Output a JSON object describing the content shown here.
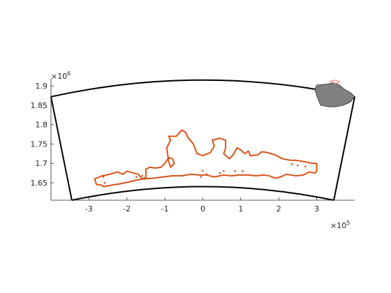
{
  "chart_data": {
    "type": "map",
    "title": "",
    "xlabel": "",
    "ylabel": "",
    "xlim": [
      -400000,
      400000
    ],
    "ylim": [
      1605000,
      1920000
    ],
    "x_ticks": [
      {
        "value": -300000,
        "label": "-3"
      },
      {
        "value": -200000,
        "label": "-2"
      },
      {
        "value": -100000,
        "label": "-1"
      },
      {
        "value": 0,
        "label": "0"
      },
      {
        "value": 100000,
        "label": "1"
      },
      {
        "value": 200000,
        "label": "2"
      },
      {
        "value": 300000,
        "label": "3"
      }
    ],
    "y_ticks": [
      {
        "value": 1650000,
        "label": "1.65"
      },
      {
        "value": 1700000,
        "label": "1.7"
      },
      {
        "value": 1750000,
        "label": "1.75"
      },
      {
        "value": 1800000,
        "label": "1.8"
      },
      {
        "value": 1850000,
        "label": "1.85"
      },
      {
        "value": 1900000,
        "label": "1.9"
      }
    ],
    "x_exponent": {
      "base": "×10",
      "power": "5"
    },
    "y_exponent": {
      "base": "×10",
      "power": "6"
    },
    "colors": {
      "frame": "#000000",
      "outline": "#D95319",
      "inset_fill": "#808080",
      "inset_highlight": "#FF6B6B"
    },
    "frame": {
      "outer_left_bottom": [
        -345000,
        1605000
      ],
      "outer_left_top": [
        -400000,
        1872000
      ],
      "outer_right_top": [
        400000,
        1872000
      ],
      "outer_right_bottom": [
        345000,
        1605000
      ],
      "top_arc_peak": [
        0,
        1915000
      ],
      "bottom_arc_peak": [
        0,
        1640000
      ]
    },
    "outline": [
      [
        -280000,
        1645000
      ],
      [
        -285000,
        1660000
      ],
      [
        -265000,
        1668000
      ],
      [
        -245000,
        1672000
      ],
      [
        -225000,
        1678000
      ],
      [
        -210000,
        1672000
      ],
      [
        -200000,
        1680000
      ],
      [
        -185000,
        1676000
      ],
      [
        -170000,
        1672000
      ],
      [
        -160000,
        1660000
      ],
      [
        -150000,
        1664000
      ],
      [
        -150000,
        1685000
      ],
      [
        -140000,
        1690000
      ],
      [
        -125000,
        1688000
      ],
      [
        -110000,
        1690000
      ],
      [
        -100000,
        1700000
      ],
      [
        -90000,
        1715000
      ],
      [
        -80000,
        1712000
      ],
      [
        -75000,
        1700000
      ],
      [
        -85000,
        1690000
      ],
      [
        -90000,
        1705000
      ],
      [
        -95000,
        1740000
      ],
      [
        -85000,
        1760000
      ],
      [
        -90000,
        1770000
      ],
      [
        -70000,
        1770000
      ],
      [
        -55000,
        1786000
      ],
      [
        -45000,
        1780000
      ],
      [
        -40000,
        1768000
      ],
      [
        -25000,
        1750000
      ],
      [
        -15000,
        1725000
      ],
      [
        0,
        1720000
      ],
      [
        20000,
        1728000
      ],
      [
        30000,
        1745000
      ],
      [
        25000,
        1760000
      ],
      [
        45000,
        1765000
      ],
      [
        60000,
        1760000
      ],
      [
        60000,
        1740000
      ],
      [
        55000,
        1725000
      ],
      [
        70000,
        1712000
      ],
      [
        80000,
        1722000
      ],
      [
        90000,
        1740000
      ],
      [
        100000,
        1735000
      ],
      [
        110000,
        1725000
      ],
      [
        120000,
        1732000
      ],
      [
        125000,
        1720000
      ],
      [
        145000,
        1722000
      ],
      [
        155000,
        1730000
      ],
      [
        170000,
        1728000
      ],
      [
        190000,
        1722000
      ],
      [
        210000,
        1712000
      ],
      [
        230000,
        1708000
      ],
      [
        245000,
        1708000
      ],
      [
        265000,
        1705000
      ],
      [
        290000,
        1700000
      ],
      [
        300000,
        1700000
      ],
      [
        300000,
        1680000
      ],
      [
        295000,
        1675000
      ],
      [
        280000,
        1678000
      ],
      [
        265000,
        1670000
      ],
      [
        245000,
        1668000
      ],
      [
        220000,
        1672000
      ],
      [
        205000,
        1665000
      ],
      [
        190000,
        1662000
      ],
      [
        175000,
        1668000
      ],
      [
        160000,
        1670000
      ],
      [
        140000,
        1668000
      ],
      [
        120000,
        1670000
      ],
      [
        95000,
        1670000
      ],
      [
        75000,
        1668000
      ],
      [
        55000,
        1670000
      ],
      [
        30000,
        1665000
      ],
      [
        10000,
        1670000
      ],
      [
        -10000,
        1670000
      ],
      [
        -30000,
        1672000
      ],
      [
        -55000,
        1668000
      ],
      [
        -80000,
        1668000
      ],
      [
        -105000,
        1665000
      ],
      [
        -130000,
        1662000
      ],
      [
        -155000,
        1660000
      ],
      [
        -175000,
        1657000
      ],
      [
        -195000,
        1652000
      ],
      [
        -215000,
        1648000
      ],
      [
        -240000,
        1644000
      ],
      [
        -260000,
        1640000
      ],
      [
        -270000,
        1645000
      ],
      [
        -280000,
        1645000
      ]
    ],
    "islands": [
      [
        -262000,
        1665000
      ],
      [
        -258000,
        1650000
      ],
      [
        -175000,
        1665000
      ],
      [
        -160000,
        1668000
      ],
      [
        45000,
        1675000
      ],
      [
        55000,
        1680000
      ],
      [
        85000,
        1680000
      ],
      [
        105000,
        1680000
      ],
      [
        0,
        1681000
      ],
      [
        235000,
        1698000
      ],
      [
        250000,
        1695000
      ],
      [
        270000,
        1692000
      ],
      [
        10000,
        1672000
      ],
      [
        -5000,
        1665000
      ]
    ],
    "inset": {
      "blob": [
        [
          300000,
          1902000
        ],
        [
          330000,
          1905000
        ],
        [
          345000,
          1908000
        ],
        [
          360000,
          1902000
        ],
        [
          375000,
          1890000
        ],
        [
          390000,
          1882000
        ],
        [
          400000,
          1872000
        ],
        [
          388000,
          1858000
        ],
        [
          370000,
          1850000
        ],
        [
          350000,
          1846000
        ],
        [
          330000,
          1846000
        ],
        [
          310000,
          1850000
        ],
        [
          305000,
          1862000
        ],
        [
          300000,
          1875000
        ],
        [
          295000,
          1890000
        ],
        [
          300000,
          1902000
        ]
      ],
      "highlight": [
        [
          335000,
          1912000
        ],
        [
          350000,
          1915000
        ],
        [
          360000,
          1910000
        ],
        [
          350000,
          1906000
        ],
        [
          335000,
          1912000
        ]
      ]
    }
  }
}
